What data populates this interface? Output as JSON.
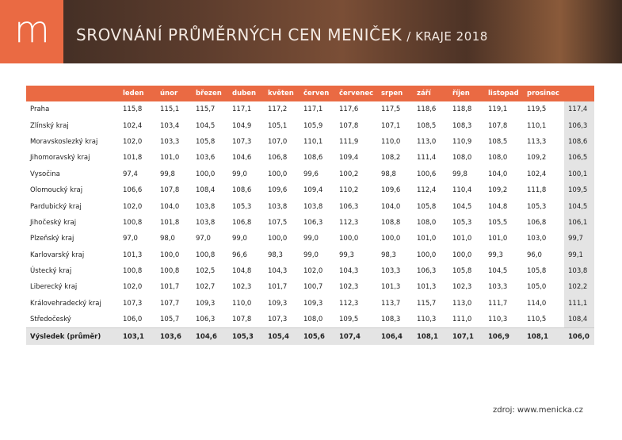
{
  "header": {
    "logo": "m",
    "title": "SROVNÁNÍ PRŮMĚRNÝCH CEN MENIČEK",
    "subtitle": "/ KRAJE 2018"
  },
  "table": {
    "columns": [
      "leden",
      "únor",
      "březen",
      "duben",
      "květen",
      "červen",
      "červenec",
      "srpen",
      "září",
      "říjen",
      "listopad",
      "prosinec"
    ],
    "rows": [
      [
        "Praha",
        "115,8",
        "115,1",
        "115,7",
        "117,1",
        "117,2",
        "117,1",
        "117,6",
        "117,5",
        "118,6",
        "118,8",
        "119,1",
        "119,5",
        "117,4"
      ],
      [
        "Zlínský kraj",
        "102,4",
        "103,4",
        "104,5",
        "104,9",
        "105,1",
        "105,9",
        "107,8",
        "107,1",
        "108,5",
        "108,3",
        "107,8",
        "110,1",
        "106,3"
      ],
      [
        "Moravskoslezký kraj",
        "102,0",
        "103,3",
        "105,8",
        "107,3",
        "107,0",
        "110,1",
        "111,9",
        "110,0",
        "113,0",
        "110,9",
        "108,5",
        "113,3",
        "108,6"
      ],
      [
        "Jihomoravský kraj",
        "101,8",
        "101,0",
        "103,6",
        "104,6",
        "106,8",
        "108,6",
        "109,4",
        "108,2",
        "111,4",
        "108,0",
        "108,0",
        "109,2",
        "106,5"
      ],
      [
        "Vysočina",
        "97,4",
        "99,8",
        "100,0",
        "99,0",
        "100,0",
        "99,6",
        "100,2",
        "98,8",
        "100,6",
        "99,8",
        "104,0",
        "102,4",
        "100,1"
      ],
      [
        "Olomoucký kraj",
        "106,6",
        "107,8",
        "108,4",
        "108,6",
        "109,6",
        "109,4",
        "110,2",
        "109,6",
        "112,4",
        "110,4",
        "109,2",
        "111,8",
        "109,5"
      ],
      [
        "Pardubický kraj",
        "102,0",
        "104,0",
        "103,8",
        "105,3",
        "103,8",
        "103,8",
        "106,3",
        "104,0",
        "105,8",
        "104,5",
        "104,8",
        "105,3",
        "104,5"
      ],
      [
        "Jihočeský kraj",
        "100,8",
        "101,8",
        "103,8",
        "106,8",
        "107,5",
        "106,3",
        "112,3",
        "108,8",
        "108,0",
        "105,3",
        "105,5",
        "106,8",
        "106,1"
      ],
      [
        "Plzeňský kraj",
        "97,0",
        "98,0",
        "97,0",
        "99,0",
        "100,0",
        "99,0",
        "100,0",
        "100,0",
        "101,0",
        "101,0",
        "101,0",
        "103,0",
        "99,7"
      ],
      [
        "Karlovarský kraj",
        "101,3",
        "100,0",
        "100,8",
        "96,6",
        "98,3",
        "99,0",
        "99,3",
        "98,3",
        "100,0",
        "100,0",
        "99,3",
        "96,0",
        "99,1"
      ],
      [
        "Ústecký kraj",
        "100,8",
        "100,8",
        "102,5",
        "104,8",
        "104,3",
        "102,0",
        "104,3",
        "103,3",
        "106,3",
        "105,8",
        "104,5",
        "105,8",
        "103,8"
      ],
      [
        "Liberecký kraj",
        "102,0",
        "101,7",
        "102,7",
        "102,3",
        "101,7",
        "100,7",
        "102,3",
        "101,3",
        "101,3",
        "102,3",
        "103,3",
        "105,0",
        "102,2"
      ],
      [
        "Královehradecký kraj",
        "107,3",
        "107,7",
        "109,3",
        "110,0",
        "109,3",
        "109,3",
        "112,3",
        "113,7",
        "115,7",
        "113,0",
        "111,7",
        "114,0",
        "111,1"
      ],
      [
        "Středočeský",
        "106,0",
        "105,7",
        "106,3",
        "107,8",
        "107,3",
        "108,0",
        "109,5",
        "108,3",
        "110,3",
        "111,0",
        "110,3",
        "110,5",
        "108,4"
      ]
    ],
    "total": [
      "Výsledek (průměr)",
      "103,1",
      "103,6",
      "104,6",
      "105,3",
      "105,4",
      "105,6",
      "107,4",
      "106,4",
      "108,1",
      "107,1",
      "106,9",
      "108,1",
      "106,0"
    ]
  },
  "footer": {
    "source": "zdroj: www.menicka.cz"
  }
}
